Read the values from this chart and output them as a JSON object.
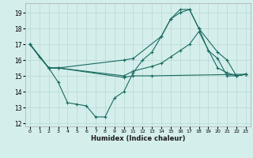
{
  "xlabel": "Humidex (Indice chaleur)",
  "xlim": [
    -0.5,
    23.5
  ],
  "ylim": [
    11.8,
    19.6
  ],
  "yticks": [
    12,
    13,
    14,
    15,
    16,
    17,
    18,
    19
  ],
  "xticks": [
    0,
    1,
    2,
    3,
    4,
    5,
    6,
    7,
    8,
    9,
    10,
    11,
    12,
    13,
    14,
    15,
    16,
    17,
    18,
    19,
    20,
    21,
    22,
    23
  ],
  "background_color": "#d4eeec",
  "grid_color": "#b8d8d5",
  "line_color": "#1a6b60",
  "lines": [
    {
      "x": [
        0,
        1,
        2,
        3,
        4,
        5,
        6,
        7,
        8,
        9,
        10,
        11,
        12,
        13,
        14,
        15,
        16,
        17,
        18,
        19,
        20,
        21,
        22,
        23
      ],
      "y": [
        17.0,
        16.2,
        15.5,
        14.6,
        13.3,
        13.2,
        13.1,
        12.4,
        12.4,
        13.6,
        14.0,
        15.2,
        16.0,
        16.5,
        17.5,
        18.6,
        19.2,
        19.2,
        18.0,
        16.6,
        16.1,
        15.0,
        15.0,
        15.1
      ]
    },
    {
      "x": [
        0,
        2,
        3,
        10,
        11,
        14,
        15,
        16,
        17,
        18,
        20,
        21,
        22,
        23
      ],
      "y": [
        17.0,
        15.5,
        15.5,
        16.0,
        16.1,
        17.5,
        18.6,
        19.0,
        19.2,
        18.0,
        16.5,
        16.0,
        15.0,
        15.1
      ]
    },
    {
      "x": [
        0,
        2,
        3,
        10,
        11,
        13,
        14,
        15,
        16,
        17,
        18,
        20,
        21,
        22,
        23
      ],
      "y": [
        17.0,
        15.5,
        15.5,
        15.0,
        15.3,
        15.6,
        15.8,
        16.2,
        16.6,
        17.0,
        17.8,
        15.5,
        15.2,
        15.0,
        15.1
      ]
    },
    {
      "x": [
        0,
        2,
        3,
        10,
        11,
        13,
        23
      ],
      "y": [
        17.0,
        15.5,
        15.5,
        14.9,
        15.0,
        15.0,
        15.1
      ]
    }
  ]
}
